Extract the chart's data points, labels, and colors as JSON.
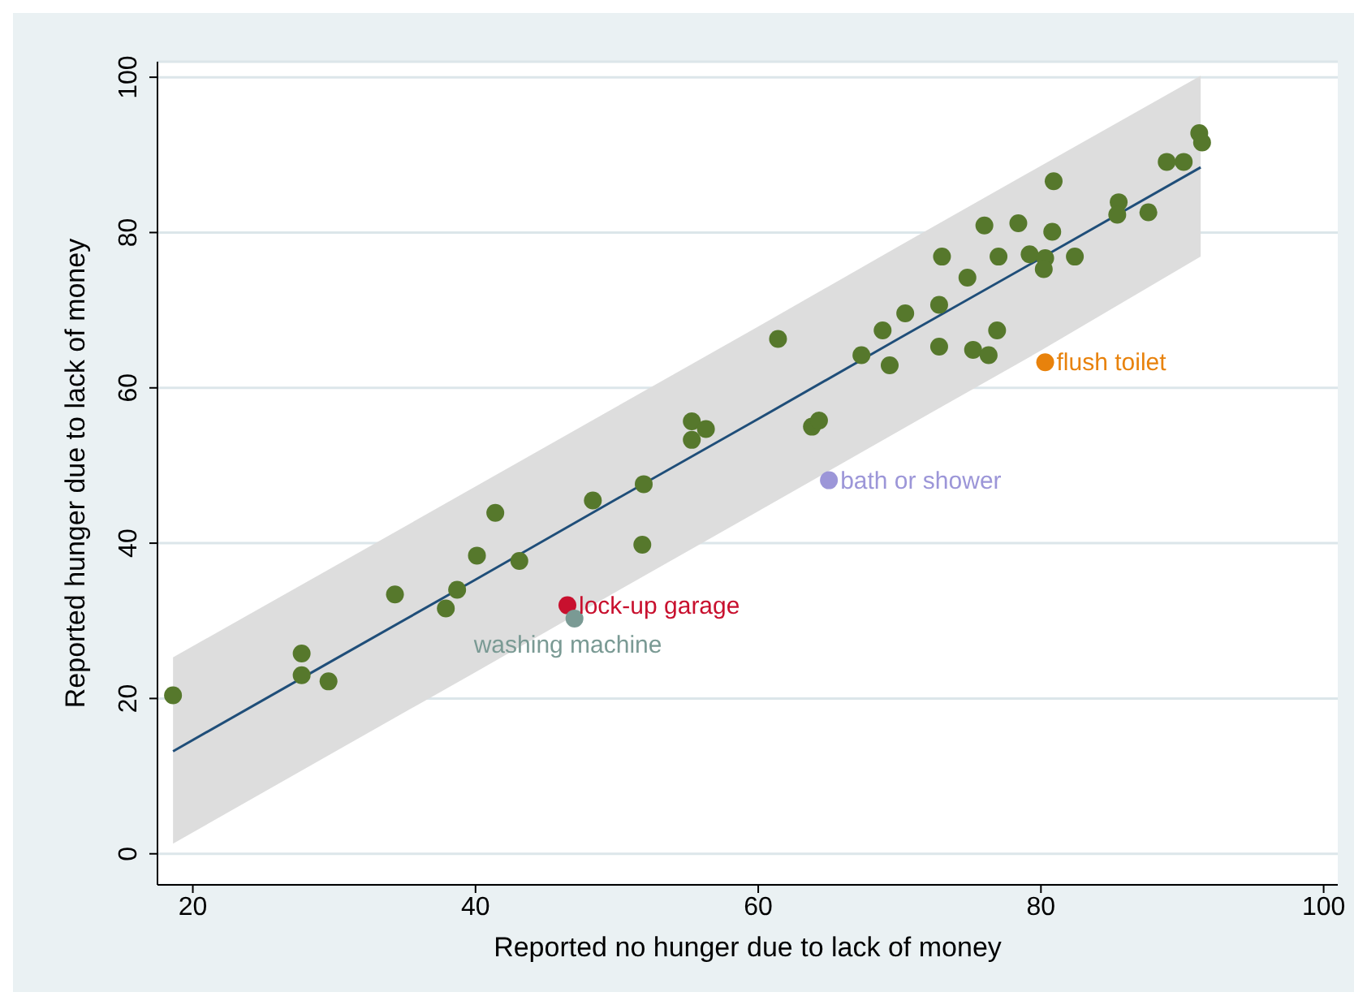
{
  "chart_data": {
    "type": "scatter",
    "xlabel": "Reported no hunger due to lack of money",
    "ylabel": "Reported hunger due to lack of money",
    "xlim": [
      17.5,
      101
    ],
    "ylim": [
      -4,
      102
    ],
    "xticks": [
      20,
      40,
      60,
      80,
      100
    ],
    "yticks": [
      0,
      20,
      40,
      60,
      80,
      100
    ],
    "grid": "y",
    "legend": false,
    "marker": "circle",
    "series": [
      {
        "color": "#56782c",
        "x": [
          18.6,
          27.7,
          27.7,
          29.6,
          34.3,
          37.9,
          38.7,
          40.1,
          41.4,
          43.1,
          48.3,
          51.8,
          51.9,
          55.3,
          55.3,
          56.3,
          61.4,
          63.8,
          64.3,
          67.3,
          68.8,
          69.3,
          70.4,
          72.8,
          72.8,
          73.0,
          74.8,
          75.2,
          76.3,
          76.0,
          76.9,
          77.0,
          78.4,
          79.2,
          80.3,
          80.2,
          80.8,
          80.9,
          82.4,
          85.5,
          85.4,
          87.6,
          88.9,
          90.1,
          91.2,
          91.4
        ],
        "values": [
          20.4,
          25.8,
          23.0,
          22.2,
          33.4,
          31.6,
          34.0,
          38.4,
          43.9,
          37.7,
          45.5,
          39.8,
          47.6,
          55.7,
          53.3,
          54.7,
          66.3,
          55.0,
          55.8,
          64.2,
          67.4,
          62.9,
          69.6,
          65.3,
          70.7,
          76.9,
          74.2,
          64.9,
          64.2,
          80.9,
          67.4,
          76.9,
          81.2,
          77.2,
          76.7,
          75.3,
          80.1,
          86.6,
          76.9,
          83.9,
          82.3,
          82.6,
          89.1,
          89.1,
          92.8,
          91.6
        ]
      },
      {
        "type": "line",
        "marker": "none",
        "color": "#1f4e79",
        "x": [
          18.6,
          30,
          40,
          50,
          60,
          70,
          80,
          91.3
        ],
        "values": [
          13.2,
          25.0,
          35.3,
          45.7,
          56.0,
          66.4,
          76.7,
          88.4
        ],
        "lower": [
          1.3,
          13.1,
          23.4,
          33.8,
          44.1,
          54.5,
          64.8,
          76.9
        ],
        "upper": [
          25.3,
          37.0,
          47.3,
          57.6,
          67.9,
          78.3,
          88.6,
          100.2
        ]
      },
      {
        "name": "lock-up garage",
        "color": "#c8102e",
        "x": [
          46.5
        ],
        "values": [
          32.0
        ]
      },
      {
        "name": "washing machine",
        "color": "#7a9a94",
        "x": [
          47.0
        ],
        "values": [
          30.3
        ]
      },
      {
        "name": "bath or shower",
        "color": "#9c96d8",
        "x": [
          65.0
        ],
        "values": [
          48.1
        ]
      },
      {
        "name": "flush toilet",
        "color": "#e8820c",
        "x": [
          80.3
        ],
        "values": [
          63.3
        ]
      }
    ]
  }
}
